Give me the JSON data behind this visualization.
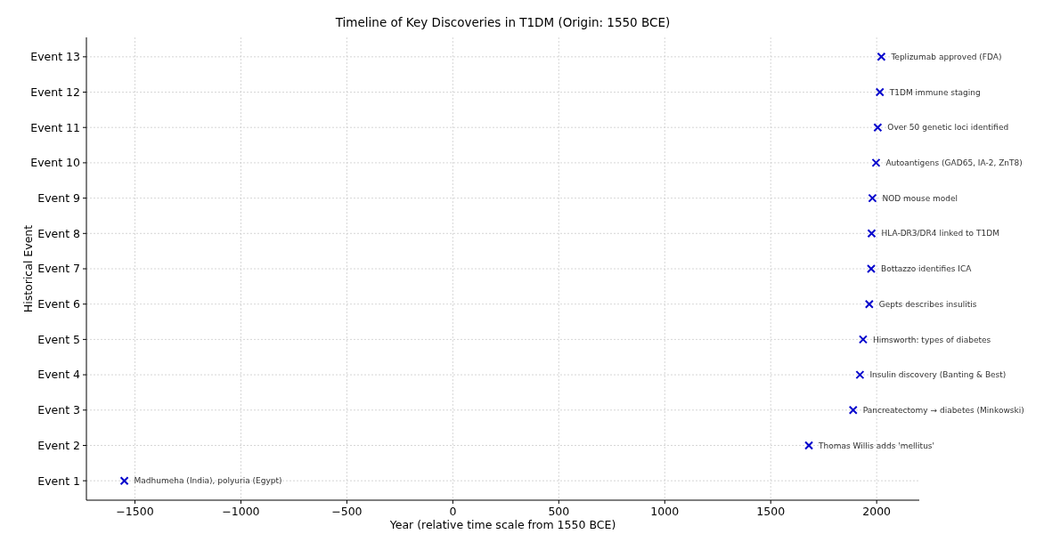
{
  "chart_data": {
    "type": "scatter",
    "orientation": "horizontal",
    "title": "Timeline of Key Discoveries in T1DM (Origin: 1550 BCE)",
    "xlabel": "Year (relative time scale from 1550 BCE)",
    "ylabel": "Historical Event",
    "categories": [
      "Event 13",
      "Event 12",
      "Event 11",
      "Event 10",
      "Event 9",
      "Event 8",
      "Event 7",
      "Event 6",
      "Event 5",
      "Event 4",
      "Event 3",
      "Event 2",
      "Event 1"
    ],
    "series": [
      {
        "color": "#0000cc",
        "values": [
          2022,
          2015,
          2005,
          1997,
          1980,
          1976,
          1974,
          1965,
          1936,
          1921,
          1889,
          1680,
          -1550
        ]
      }
    ],
    "xlim": [
      -1729,
      2201
    ],
    "xticks": [
      {
        "value": -1500,
        "label": "−1500"
      },
      {
        "value": -1000,
        "label": "−1000"
      },
      {
        "value": -500,
        "label": "−500"
      },
      0,
      500,
      1000,
      1500,
      2000
    ],
    "grid": true,
    "marker": "cross",
    "annotations": [
      {
        "text": "Teplizumab approved (FDA)",
        "x": 2022,
        "y": "Event 13"
      },
      {
        "text": "T1DM immune staging",
        "x": 2015,
        "y": "Event 12"
      },
      {
        "text": "Over 50 genetic loci identified",
        "x": 2005,
        "y": "Event 11"
      },
      {
        "text": "Autoantigens (GAD65, IA-2, ZnT8)",
        "x": 1997,
        "y": "Event 10"
      },
      {
        "text": "NOD mouse model",
        "x": 1980,
        "y": "Event 9"
      },
      {
        "text": "HLA-DR3/DR4 linked to T1DM",
        "x": 1976,
        "y": "Event 8"
      },
      {
        "text": "Bottazzo identifies ICA",
        "x": 1974,
        "y": "Event 7"
      },
      {
        "text": "Gepts describes insulitis",
        "x": 1965,
        "y": "Event 6"
      },
      {
        "text": "Himsworth: types of diabetes",
        "x": 1936,
        "y": "Event 5"
      },
      {
        "text": "Insulin discovery (Banting & Best)",
        "x": 1921,
        "y": "Event 4"
      },
      {
        "text": "Pancreatectomy → diabetes (Minkowski)",
        "x": 1889,
        "y": "Event 3"
      },
      {
        "text": "Thomas Willis adds 'mellitus'",
        "x": 1680,
        "y": "Event 2"
      },
      {
        "text": "Madhumeha (India), polyuria (Egypt)",
        "x": -1550,
        "y": "Event 1"
      }
    ]
  }
}
